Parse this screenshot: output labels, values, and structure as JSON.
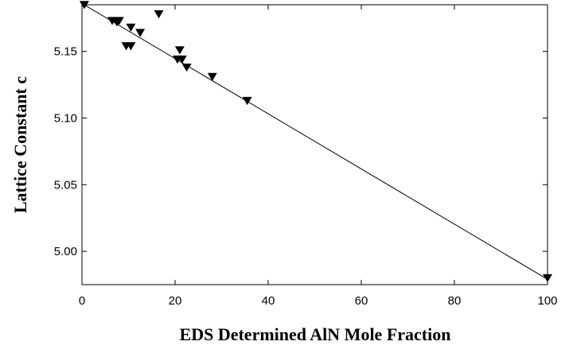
{
  "chart_data": {
    "type": "scatter",
    "title": "",
    "xlabel": "EDS Determined AlN Mole Fraction",
    "ylabel": "Lattice Constant c",
    "xlim": [
      0,
      100
    ],
    "ylim": [
      4.975,
      5.185
    ],
    "x_ticks": [
      "0",
      "20",
      "40",
      "60",
      "80",
      "100"
    ],
    "y_ticks": [
      "5.00",
      "5.05",
      "5.10",
      "5.15"
    ],
    "grid": false,
    "legend": "none",
    "marker": "triangle-down",
    "colors": {
      "marker": "#000000",
      "line": "#000000",
      "axes": "#000000"
    },
    "series": [
      {
        "points": [
          {
            "x": 0.5,
            "y": 5.185
          },
          {
            "x": 6.5,
            "y": 5.173
          },
          {
            "x": 7.5,
            "y": 5.172
          },
          {
            "x": 8.0,
            "y": 5.173
          },
          {
            "x": 10.5,
            "y": 5.168
          },
          {
            "x": 9.5,
            "y": 5.154
          },
          {
            "x": 10.5,
            "y": 5.154
          },
          {
            "x": 12.5,
            "y": 5.164
          },
          {
            "x": 16.5,
            "y": 5.178
          },
          {
            "x": 20.5,
            "y": 5.144
          },
          {
            "x": 21.5,
            "y": 5.144
          },
          {
            "x": 21.0,
            "y": 5.151
          },
          {
            "x": 22.5,
            "y": 5.138
          },
          {
            "x": 28.0,
            "y": 5.131
          },
          {
            "x": 35.5,
            "y": 5.113
          },
          {
            "x": 100.0,
            "y": 4.98
          }
        ]
      }
    ],
    "fit_line": {
      "x": [
        0,
        100
      ],
      "y": [
        5.186,
        4.979
      ]
    }
  }
}
